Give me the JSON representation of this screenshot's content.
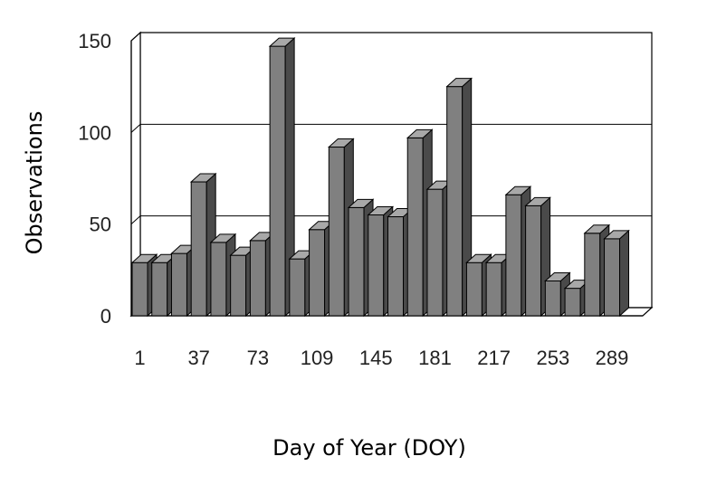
{
  "chart_data": {
    "type": "bar",
    "style": "3d",
    "xlabel": "Day of Year (DOY)",
    "ylabel": "Observations",
    "ylim": [
      0,
      150
    ],
    "yticks": [
      0,
      50,
      100,
      150
    ],
    "xtick_labels": [
      "1",
      "37",
      "73",
      "109",
      "145",
      "181",
      "217",
      "253",
      "289"
    ],
    "grid": true,
    "bar_color": "#808080",
    "categories": [
      1,
      13,
      25,
      37,
      49,
      61,
      73,
      85,
      97,
      109,
      121,
      133,
      145,
      157,
      169,
      181,
      193,
      205,
      217,
      229,
      241,
      253,
      265,
      277,
      289,
      301
    ],
    "values": [
      29,
      29,
      34,
      73,
      40,
      33,
      41,
      147,
      31,
      47,
      92,
      59,
      55,
      54,
      97,
      69,
      125,
      29,
      29,
      66,
      60,
      19,
      15,
      45,
      42,
      0
    ]
  }
}
